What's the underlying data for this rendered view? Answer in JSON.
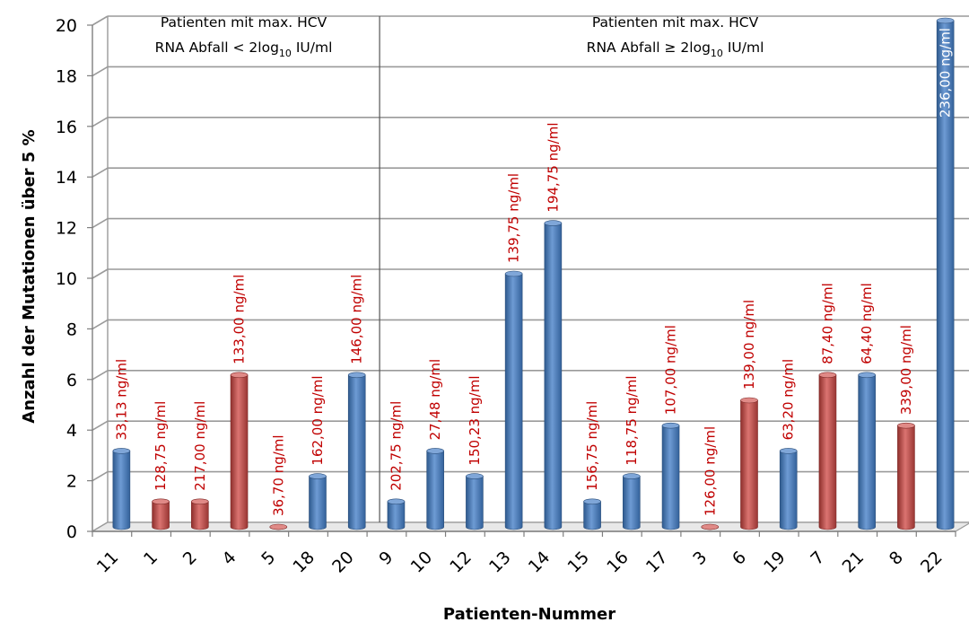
{
  "chart_data": {
    "type": "bar",
    "ylabel": "Anzahl der Mutationen über 5 %",
    "xlabel": "Patienten-Nummer",
    "ylim": [
      0,
      20
    ],
    "yticks": [
      0,
      2,
      4,
      6,
      8,
      10,
      12,
      14,
      16,
      18,
      20
    ],
    "grid": true,
    "colors": {
      "blue": "#4F81BD",
      "red": "#C0504D",
      "label_red": "#C00000",
      "label_white": "#FFFFFF"
    },
    "groups": [
      {
        "line1": "Patienten mit max. HCV",
        "line2_pre": "RNA Abfall < 2log",
        "sub": "10",
        "line2_post": " IU/ml"
      },
      {
        "line1": "Patienten mit max. HCV",
        "line2_pre": "RNA Abfall ≥ 2log",
        "sub": "10",
        "line2_post": " IU/ml"
      }
    ],
    "bars": [
      {
        "patient": "11",
        "value": 3,
        "color": "blue",
        "label": "33,13 ng/ml"
      },
      {
        "patient": "1",
        "value": 1,
        "color": "red",
        "label": "128,75 ng/ml"
      },
      {
        "patient": "2",
        "value": 1,
        "color": "red",
        "label": "217,00 ng/ml"
      },
      {
        "patient": "4",
        "value": 6,
        "color": "red",
        "label": "133,00 ng/ml"
      },
      {
        "patient": "5",
        "value": 0,
        "color": "red",
        "label": "36,70 ng/ml"
      },
      {
        "patient": "18",
        "value": 2,
        "color": "blue",
        "label": "162,00 ng/ml"
      },
      {
        "patient": "20",
        "value": 6,
        "color": "blue",
        "label": "146,00 ng/ml"
      },
      {
        "patient": "9",
        "value": 1,
        "color": "blue",
        "label": "202,75 ng/ml"
      },
      {
        "patient": "10",
        "value": 3,
        "color": "blue",
        "label": "27,48 ng/ml"
      },
      {
        "patient": "12",
        "value": 2,
        "color": "blue",
        "label": "150,23 ng/ml"
      },
      {
        "patient": "13",
        "value": 10,
        "color": "blue",
        "label": "139,75 ng/ml"
      },
      {
        "patient": "14",
        "value": 12,
        "color": "blue",
        "label": "194,75 ng/ml"
      },
      {
        "patient": "15",
        "value": 1,
        "color": "blue",
        "label": "156,75 ng/ml"
      },
      {
        "patient": "16",
        "value": 2,
        "color": "blue",
        "label": "118,75 ng/ml"
      },
      {
        "patient": "17",
        "value": 4,
        "color": "blue",
        "label": "107,00 ng/ml"
      },
      {
        "patient": "3",
        "value": 0,
        "color": "red",
        "label": "126,00 ng/ml"
      },
      {
        "patient": "6",
        "value": 5,
        "color": "red",
        "label": "139,00 ng/ml"
      },
      {
        "patient": "19",
        "value": 3,
        "color": "blue",
        "label": "63,20 ng/ml"
      },
      {
        "patient": "7",
        "value": 6,
        "color": "red",
        "label": "87,40 ng/ml"
      },
      {
        "patient": "21",
        "value": 6,
        "color": "blue",
        "label": "64,40 ng/ml"
      },
      {
        "patient": "8",
        "value": 4,
        "color": "red",
        "label": "339,00 ng/ml"
      },
      {
        "patient": "22",
        "value": 20,
        "color": "blue",
        "label": "236,00 ng/ml"
      }
    ]
  }
}
